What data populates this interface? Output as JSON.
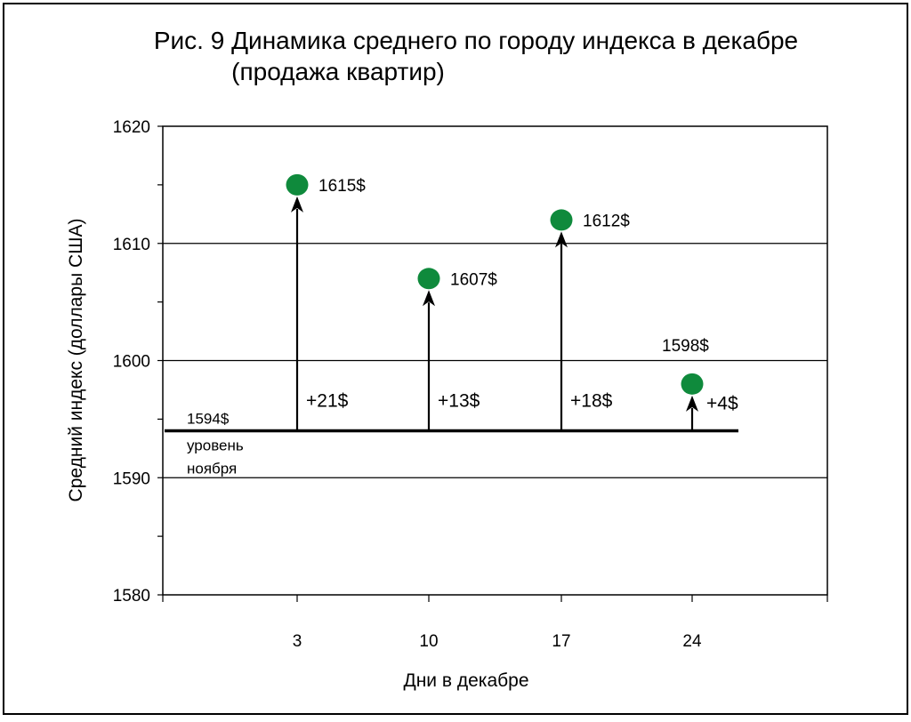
{
  "chart_data": {
    "type": "scatter",
    "title_lines": [
      "Рис. 9 Динамика среднего по городу индекса в декабре",
      "(продажа квартир)"
    ],
    "xlabel": "Дни в декабре",
    "ylabel": "Средний индекс (доллары США)",
    "x_ticks": [
      "3",
      "10",
      "17",
      "24"
    ],
    "y_ticks": [
      "1620",
      "1610",
      "1600",
      "1590",
      "1580"
    ],
    "ylim": [
      1580,
      1620
    ],
    "grid": "horizontal",
    "baseline": {
      "value": 1594,
      "label": "1594$",
      "note": [
        "уровень",
        "ноября"
      ]
    },
    "points": [
      {
        "x": "3",
        "value": 1615,
        "label": "1615$",
        "delta": "+21$"
      },
      {
        "x": "10",
        "value": 1607,
        "label": "1607$",
        "delta": "+13$"
      },
      {
        "x": "17",
        "value": 1612,
        "label": "1612$",
        "delta": "+18$"
      },
      {
        "x": "24",
        "value": 1598,
        "label": "1598$",
        "delta": "+4$"
      }
    ],
    "point_color": "#0f8a3c"
  }
}
